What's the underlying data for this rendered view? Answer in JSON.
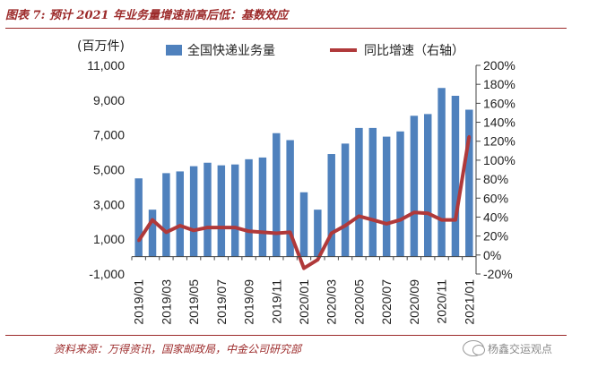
{
  "title": "图表 7: 预计 2021 年业务量增速前高后低：基数效应",
  "source": "资料来源：万得资讯，国家邮政局，中金公司研究部",
  "watermark": "杨鑫交运观点",
  "colors": {
    "bar": "#4f81bd",
    "line": "#b0393a",
    "title": "#9c2a2a"
  },
  "chart_data": {
    "type": "bar",
    "left_unit": "(百万件)",
    "series": [
      {
        "name": "全国快递业务量",
        "type": "bar",
        "axis": "left",
        "values": [
          4500,
          2700,
          4800,
          4900,
          5200,
          5400,
          5250,
          5300,
          5600,
          5700,
          7100,
          6700,
          3700,
          2700,
          5900,
          6500,
          7400,
          7400,
          6900,
          7200,
          8100,
          8200,
          9700,
          9250,
          8450
        ]
      },
      {
        "name": "同比增速（右轴）",
        "type": "line",
        "axis": "right",
        "values": [
          15,
          37,
          24,
          31,
          26,
          29,
          29,
          29,
          25,
          24,
          23,
          24,
          -14,
          -5,
          23,
          31,
          41,
          37,
          33,
          37,
          45,
          44,
          37,
          37,
          125
        ]
      }
    ],
    "x_tick_labels": [
      "2019/01",
      "2019/03",
      "2019/05",
      "2019/07",
      "2019/09",
      "2019/11",
      "2020/01",
      "2020/03",
      "2020/05",
      "2020/07",
      "2020/09",
      "2020/11",
      "2021/01"
    ],
    "left_axis": {
      "min": -1000,
      "max": 11000,
      "ticks": [
        "-1,000",
        "1,000",
        "3,000",
        "5,000",
        "7,000",
        "9,000",
        "11,000"
      ]
    },
    "right_axis": {
      "min": -20,
      "max": 200,
      "ticks": [
        "-20%",
        "0%",
        "20%",
        "40%",
        "60%",
        "80%",
        "100%",
        "120%",
        "140%",
        "160%",
        "180%",
        "200%"
      ]
    },
    "grid": false,
    "legend_position": "top"
  }
}
